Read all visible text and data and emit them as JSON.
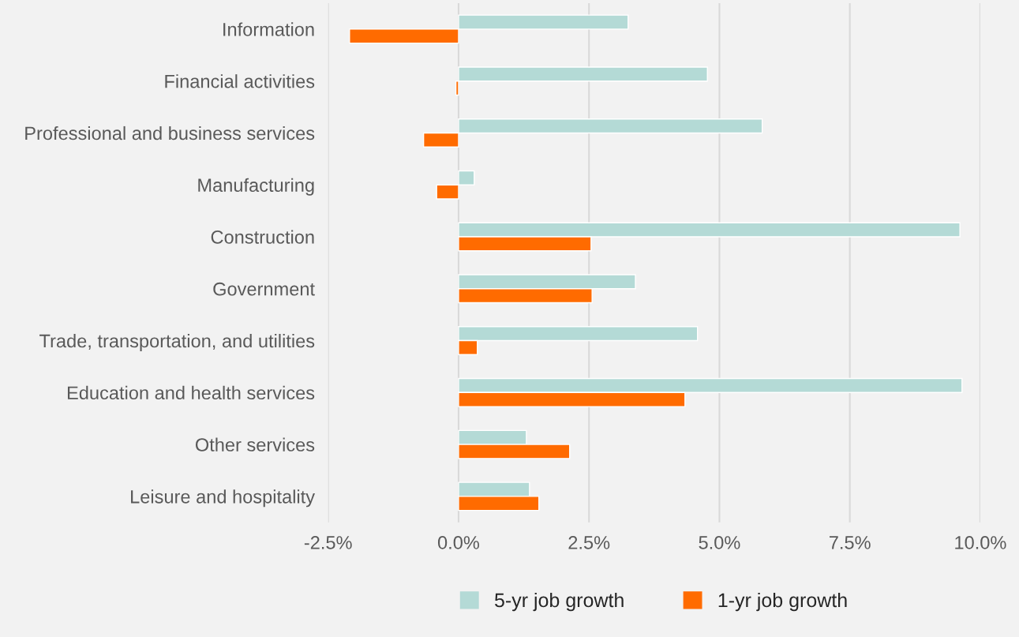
{
  "chart_data": {
    "type": "bar",
    "orientation": "horizontal",
    "categories": [
      "Information",
      "Financial activities",
      "Professional and business services",
      "Manufacturing",
      "Construction",
      "Government",
      "Trade, transportation, and utilities",
      "Education and health services",
      "Other services",
      "Leisure and hospitality"
    ],
    "series": [
      {
        "name": "5-yr job growth",
        "color": "#b4dad6",
        "values": [
          3.25,
          4.77,
          5.82,
          0.3,
          9.61,
          3.39,
          4.58,
          9.65,
          1.3,
          1.36
        ]
      },
      {
        "name": "1-yr job growth",
        "color": "#ff6b00",
        "values": [
          -2.09,
          -0.05,
          -0.67,
          -0.42,
          2.54,
          2.56,
          0.36,
          4.34,
          2.13,
          1.54
        ]
      }
    ],
    "xlim": [
      -2.5,
      10
    ],
    "xticks": [
      {
        "value": -2.5,
        "label": "-2.5%"
      },
      {
        "value": 0,
        "label": "0.0%"
      },
      {
        "value": 2.5,
        "label": "2.5%"
      },
      {
        "value": 5,
        "label": "5.0%"
      },
      {
        "value": 7.5,
        "label": "7.5%"
      },
      {
        "value": 10,
        "label": "10.0%"
      }
    ],
    "grid": "x",
    "legend": "bottom"
  }
}
